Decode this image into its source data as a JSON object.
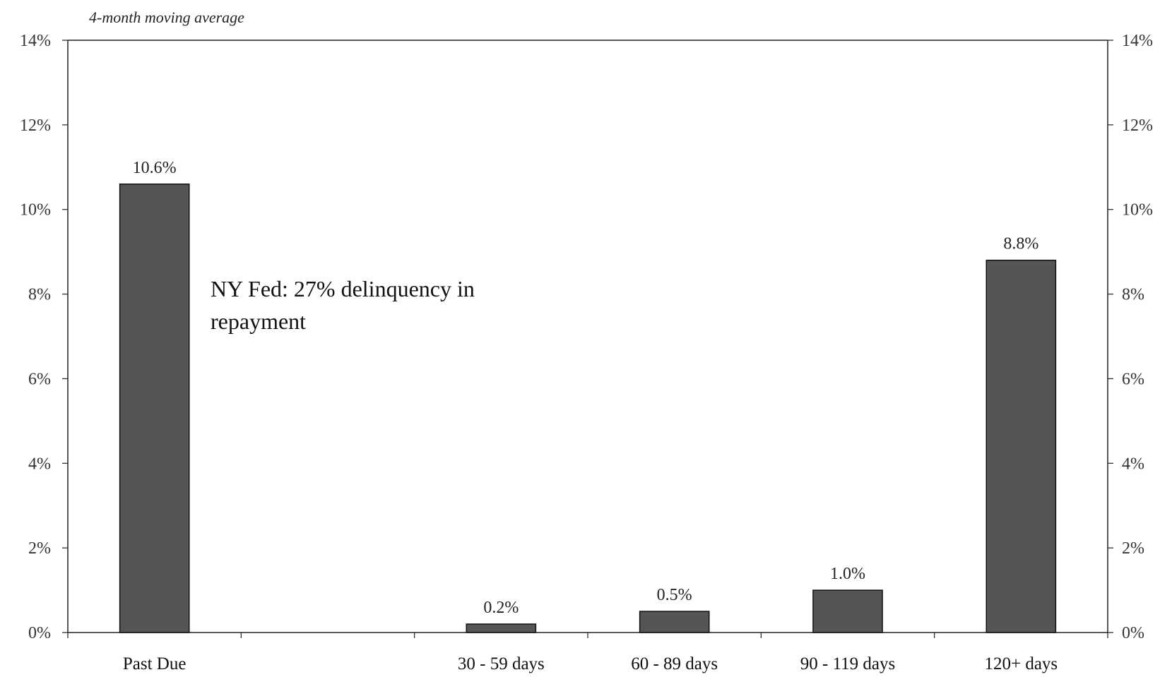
{
  "chart_data": {
    "type": "bar",
    "subtitle": "4-month moving average",
    "categories": [
      "Past Due",
      "",
      "30 - 59 days",
      "60 - 89 days",
      "90 - 119 days",
      "120+ days"
    ],
    "series": [
      {
        "values": [
          10.6,
          null,
          0.2,
          0.5,
          1.0,
          8.8
        ]
      }
    ],
    "data_labels": [
      "10.6%",
      "",
      "0.2%",
      "0.5%",
      "1.0%",
      "8.8%"
    ],
    "ylim": [
      0,
      14
    ],
    "yticks": [
      0,
      2,
      4,
      6,
      8,
      10,
      12,
      14
    ],
    "ytick_labels": [
      "0%",
      "2%",
      "4%",
      "6%",
      "8%",
      "10%",
      "12%",
      "14%"
    ],
    "secondary_axis": true,
    "grid": false,
    "bar_color": "#555555",
    "annotation": {
      "lines": [
        "NY Fed: 27% delinquency in",
        "repayment"
      ]
    }
  }
}
